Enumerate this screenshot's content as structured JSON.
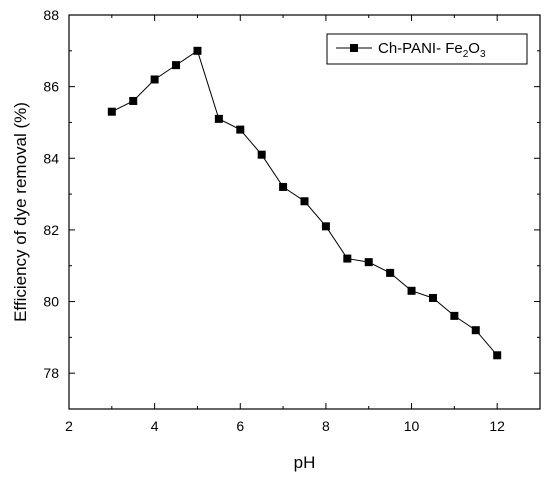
{
  "chart_data": {
    "type": "line",
    "title": "",
    "xlabel": "pH",
    "ylabel": "Efficiency of dye removal (%)",
    "xlim": [
      2,
      13
    ],
    "ylim": [
      77,
      88
    ],
    "x_ticks": [
      2,
      4,
      6,
      8,
      10,
      12
    ],
    "y_ticks": [
      78,
      80,
      82,
      84,
      86,
      88
    ],
    "grid": false,
    "legend_placement": "top-right",
    "marker": "square",
    "line_color": "#000000",
    "series": [
      {
        "name": "Ch-PANI- Fe2O3",
        "legend": {
          "main": "Ch-PANI- Fe",
          "sub1": "2",
          "mid": "O",
          "sub2": "3"
        },
        "x": [
          3,
          3.5,
          4,
          4.5,
          5,
          5.5,
          6,
          6.5,
          7,
          7.5,
          8,
          8.5,
          9,
          9.5,
          10,
          10.5,
          11,
          11.5,
          12
        ],
        "y": [
          85.3,
          85.6,
          86.2,
          86.6,
          87.0,
          85.1,
          84.8,
          84.1,
          83.2,
          82.8,
          82.1,
          81.2,
          81.1,
          80.8,
          80.3,
          80.1,
          79.6,
          79.2,
          78.5
        ]
      }
    ]
  }
}
